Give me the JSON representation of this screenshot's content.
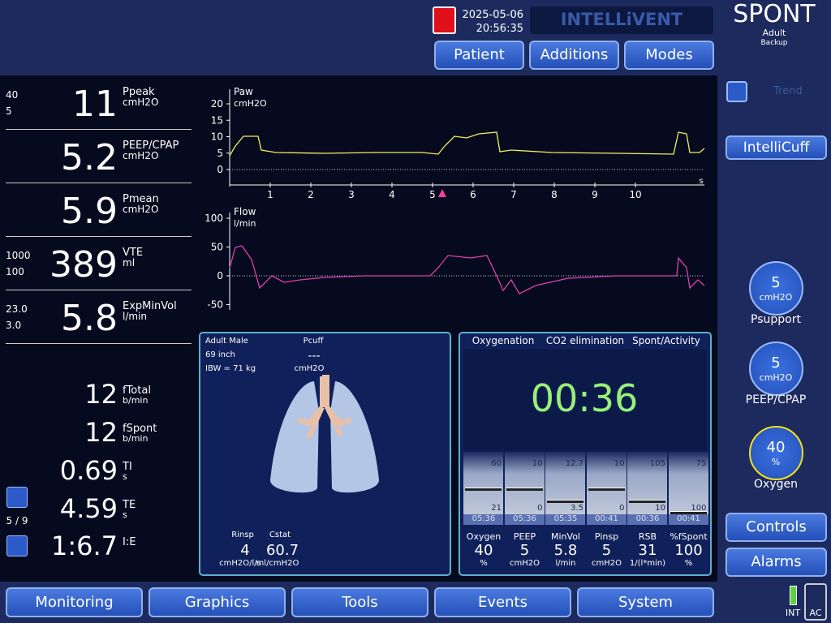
{
  "header": {
    "date": "2025-05-06",
    "time": "20:56:35",
    "logo": "INTELLiVENT",
    "mode": "SPONT",
    "patient_group": "Adult",
    "backup": "Backup",
    "tabs": [
      "Patient",
      "Additions",
      "Modes"
    ]
  },
  "monitoring": [
    {
      "high": "40",
      "low": "5",
      "value": "11",
      "name": "Ppeak",
      "unit": "cmH2O"
    },
    {
      "value": "5.2",
      "name": "PEEP/CPAP",
      "unit": "cmH2O"
    },
    {
      "value": "5.9",
      "name": "Pmean",
      "unit": "cmH2O"
    },
    {
      "high": "1000",
      "low": "100",
      "value": "389",
      "name": "VTE",
      "unit": "ml"
    },
    {
      "high": "23.0",
      "low": "3.0",
      "value": "5.8",
      "name": "ExpMinVol",
      "unit": "l/min"
    }
  ],
  "secondary": [
    {
      "value": "12",
      "name": "fTotal",
      "unit": "b/min"
    },
    {
      "value": "12",
      "name": "fSpont",
      "unit": "b/min"
    },
    {
      "value": "0.69",
      "name": "TI",
      "unit": "s"
    },
    {
      "value": "4.59",
      "name": "TE",
      "unit": "s"
    },
    {
      "value": "1:6.7",
      "name": "I:E"
    }
  ],
  "page_indicator": "5 / 9",
  "waveforms": {
    "xticks": [
      "1",
      "2",
      "3",
      "4",
      "5",
      "6",
      "7",
      "8",
      "9",
      "10"
    ],
    "x_unit": "s",
    "plots": [
      {
        "name": "Paw",
        "unit": "cmH2O",
        "yticks": [
          "20",
          "15",
          "10",
          "5",
          "0"
        ]
      },
      {
        "name": "Flow",
        "unit": "l/min",
        "yticks": [
          "100",
          "50",
          "0",
          "-50"
        ]
      }
    ]
  },
  "lung_panel": {
    "patient": "Adult Male",
    "height": "69 inch",
    "ibw": "IBW = 71 kg",
    "pcuff_label": "Pcuff",
    "pcuff_value": "---",
    "pcuff_unit": "cmH2O",
    "rinsp": {
      "label": "Rinsp",
      "value": "4",
      "unit": "cmH2O/l/s"
    },
    "cstat": {
      "label": "Cstat",
      "value": "60.7",
      "unit": "ml/cmH2O"
    }
  },
  "intellivent_panel": {
    "headers": [
      "Oxygenation",
      "CO2 elimination",
      "Spont/Activity"
    ],
    "timer": "00:36",
    "columns": [
      {
        "high": "60",
        "low": "21",
        "time": "05:36",
        "label": "Oxygen",
        "value": "40",
        "unit": "%"
      },
      {
        "high": "10",
        "low": "0",
        "time": "05:36",
        "label": "PEEP",
        "value": "5",
        "unit": "cmH2O"
      },
      {
        "high": "12.7",
        "low": "3.5",
        "time": "05:35",
        "label": "MinVol",
        "value": "5.8",
        "unit": "l/min"
      },
      {
        "high": "10",
        "low": "0",
        "time": "00:41",
        "label": "Pinsp",
        "value": "5",
        "unit": "cmH2O"
      },
      {
        "high": "105",
        "low": "10",
        "time": "00:36",
        "label": "RSB",
        "value": "31",
        "unit": "1/(l*min)"
      },
      {
        "high": "75",
        "low": "100",
        "time": "00:41",
        "label": "%fSpont",
        "value": "100",
        "unit": "%"
      }
    ]
  },
  "right_panel": {
    "trend": "Trend",
    "intellicuff": "IntelliCuff",
    "controls": [
      {
        "value": "5",
        "unit": "cmH2O",
        "label": "Psupport"
      },
      {
        "value": "5",
        "unit": "cmH2O",
        "label": "PEEP/CPAP"
      },
      {
        "value": "40",
        "unit": "%",
        "label": "Oxygen"
      }
    ],
    "buttons": [
      "Controls",
      "Alarms"
    ],
    "power": [
      "INT",
      "AC"
    ]
  },
  "bottom_tabs": [
    "Monitoring",
    "Graphics",
    "Tools",
    "Events",
    "System"
  ]
}
